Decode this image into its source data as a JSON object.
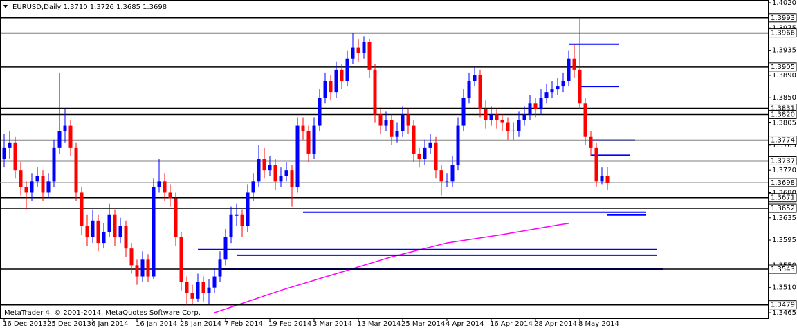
{
  "chart_data": {
    "type": "candlestick",
    "title": "EURUSD,Daily  1.3710 1.3726 1.3685 1.3698",
    "footer": "MetaTrader 4, © 2001-2014, MetaQuotes Software Corp.",
    "bull_color": "#0000ff",
    "bear_color": "#ff0000",
    "level_color": "#000000",
    "object_color": "#0000ff",
    "ma_color": "#ff00ff",
    "ylim": [
      1.3465,
      1.402
    ],
    "yticks": [
      {
        "value": 1.402,
        "label": "1.4020"
      },
      1.3975,
      1.3935,
      {
        "value": 1.389,
        "label": "1.3890"
      },
      {
        "value": 1.385,
        "label": "1.3850"
      },
      1.3805,
      1.3765,
      {
        "value": 1.372,
        "label": "1.3720"
      },
      {
        "value": 1.368,
        "label": "1.3680"
      },
      1.3635,
      1.3595,
      {
        "value": 1.355,
        "label": "1.3550"
      },
      {
        "value": 1.351,
        "label": "1.3510"
      },
      1.3465
    ],
    "xticks": [
      {
        "value": 0,
        "label": "16 Dec 2013"
      },
      {
        "value": 8,
        "label": "25 Dec 2013"
      },
      {
        "value": 16,
        "label": "6 Jan 2014"
      },
      {
        "value": 24,
        "label": "16 Jan 2014"
      },
      {
        "value": 32,
        "label": "28 Jan 2014"
      },
      {
        "value": 40,
        "label": "7 Feb 2014"
      },
      {
        "value": 48,
        "label": "19 Feb 2014"
      },
      {
        "value": 56,
        "label": "3 Mar 2014"
      },
      {
        "value": 64,
        "label": "13 Mar 2014"
      },
      {
        "value": 72,
        "label": "25 Mar 2014"
      },
      {
        "value": 80,
        "label": "4 Apr 2014"
      },
      {
        "value": 88,
        "label": "16 Apr 2014"
      },
      {
        "value": 96,
        "label": "28 Apr 2014"
      },
      {
        "value": 104,
        "label": "8 May 2014"
      }
    ],
    "levels": [
      1.3993,
      1.3966,
      1.3905,
      1.3831,
      {
        "value": 1.382,
        "label": "1.3820"
      },
      1.3774,
      1.3737,
      1.3671,
      1.3652,
      1.3543,
      1.3479
    ],
    "current_price": 1.3698,
    "objects": [
      {
        "price": 1.3946,
        "from": 102,
        "to": 111
      },
      {
        "price": 1.387,
        "from": 104,
        "to": 111
      },
      {
        "price": 1.3774,
        "from": 106,
        "to": 114
      },
      {
        "price": 1.3747,
        "from": 106,
        "to": 113
      },
      {
        "price": 1.3645,
        "from": 54,
        "to": 116
      },
      {
        "price": 1.364,
        "from": 109,
        "to": 116
      },
      {
        "price": 1.3578,
        "from": 35,
        "to": 118
      },
      {
        "price": 1.3568,
        "from": 42,
        "to": 118
      },
      {
        "price": 1.3543,
        "from": 39,
        "to": 119
      }
    ],
    "ma": {
      "x": [
        38,
        50,
        60,
        70,
        80,
        90,
        96,
        100,
        102
      ],
      "values": [
        1.3465,
        1.3505,
        1.3535,
        1.3565,
        1.359,
        1.3605,
        1.3615,
        1.3622,
        1.3625
      ]
    },
    "ohlc": [
      [
        1.374,
        1.3785,
        1.3725,
        1.376
      ],
      [
        1.376,
        1.379,
        1.374,
        1.377
      ],
      [
        1.377,
        1.378,
        1.3705,
        1.372
      ],
      [
        1.372,
        1.3735,
        1.3675,
        1.369
      ],
      [
        1.369,
        1.37,
        1.365,
        1.368
      ],
      [
        1.368,
        1.3715,
        1.3665,
        1.37
      ],
      [
        1.37,
        1.3725,
        1.369,
        1.371
      ],
      [
        1.371,
        1.372,
        1.3665,
        1.368
      ],
      [
        1.368,
        1.3715,
        1.367,
        1.37
      ],
      [
        1.37,
        1.3775,
        1.369,
        1.376
      ],
      [
        1.376,
        1.3895,
        1.375,
        1.379
      ],
      [
        1.379,
        1.383,
        1.377,
        1.38
      ],
      [
        1.38,
        1.381,
        1.3745,
        1.376
      ],
      [
        1.376,
        1.377,
        1.3665,
        1.368
      ],
      [
        1.368,
        1.369,
        1.3605,
        1.362
      ],
      [
        1.362,
        1.364,
        1.3585,
        1.36
      ],
      [
        1.36,
        1.365,
        1.359,
        1.363
      ],
      [
        1.363,
        1.364,
        1.3575,
        1.359
      ],
      [
        1.359,
        1.3625,
        1.358,
        1.361
      ],
      [
        1.361,
        1.366,
        1.36,
        1.364
      ],
      [
        1.364,
        1.365,
        1.3585,
        1.36
      ],
      [
        1.36,
        1.3635,
        1.359,
        1.362
      ],
      [
        1.362,
        1.363,
        1.3565,
        1.358
      ],
      [
        1.358,
        1.359,
        1.3535,
        1.355
      ],
      [
        1.355,
        1.356,
        1.3515,
        1.353
      ],
      [
        1.353,
        1.3575,
        1.352,
        1.356
      ],
      [
        1.356,
        1.357,
        1.352,
        1.353
      ],
      [
        1.353,
        1.3705,
        1.3525,
        1.369
      ],
      [
        1.369,
        1.374,
        1.368,
        1.37
      ],
      [
        1.37,
        1.3715,
        1.3665,
        1.368
      ],
      [
        1.368,
        1.3695,
        1.3655,
        1.367
      ],
      [
        1.367,
        1.368,
        1.3585,
        1.36
      ],
      [
        1.36,
        1.361,
        1.3505,
        1.352
      ],
      [
        1.352,
        1.353,
        1.3479,
        1.35
      ],
      [
        1.35,
        1.3515,
        1.348,
        1.349
      ],
      [
        1.349,
        1.3535,
        1.3485,
        1.352
      ],
      [
        1.352,
        1.353,
        1.3485,
        1.35
      ],
      [
        1.35,
        1.3525,
        1.348,
        1.351
      ],
      [
        1.351,
        1.3545,
        1.35,
        1.353
      ],
      [
        1.353,
        1.3575,
        1.352,
        1.356
      ],
      [
        1.356,
        1.3615,
        1.355,
        1.36
      ],
      [
        1.36,
        1.3655,
        1.359,
        1.364
      ],
      [
        1.364,
        1.366,
        1.362,
        1.364
      ],
      [
        1.364,
        1.365,
        1.36,
        1.362
      ],
      [
        1.362,
        1.3695,
        1.361,
        1.368
      ],
      [
        1.368,
        1.3715,
        1.3665,
        1.37
      ],
      [
        1.37,
        1.3765,
        1.369,
        1.374
      ],
      [
        1.374,
        1.376,
        1.3705,
        1.372
      ],
      [
        1.372,
        1.3745,
        1.371,
        1.373
      ],
      [
        1.373,
        1.374,
        1.3685,
        1.37
      ],
      [
        1.37,
        1.3725,
        1.369,
        1.371
      ],
      [
        1.371,
        1.3735,
        1.37,
        1.372
      ],
      [
        1.372,
        1.373,
        1.3655,
        1.369
      ],
      [
        1.369,
        1.3815,
        1.368,
        1.38
      ],
      [
        1.38,
        1.3815,
        1.3775,
        1.379
      ],
      [
        1.379,
        1.38,
        1.3735,
        1.375
      ],
      [
        1.375,
        1.3815,
        1.374,
        1.38
      ],
      [
        1.38,
        1.3865,
        1.379,
        1.385
      ],
      [
        1.385,
        1.3895,
        1.384,
        1.388
      ],
      [
        1.388,
        1.389,
        1.3845,
        1.386
      ],
      [
        1.386,
        1.3915,
        1.385,
        1.39
      ],
      [
        1.39,
        1.391,
        1.3865,
        1.388
      ],
      [
        1.388,
        1.3935,
        1.387,
        1.392
      ],
      [
        1.392,
        1.3966,
        1.391,
        1.394
      ],
      [
        1.394,
        1.3955,
        1.3915,
        1.393
      ],
      [
        1.393,
        1.396,
        1.392,
        1.395
      ],
      [
        1.395,
        1.3955,
        1.3885,
        1.39
      ],
      [
        1.39,
        1.391,
        1.3805,
        1.382
      ],
      [
        1.382,
        1.383,
        1.3785,
        1.38
      ],
      [
        1.38,
        1.3825,
        1.379,
        1.381
      ],
      [
        1.381,
        1.382,
        1.3765,
        1.378
      ],
      [
        1.378,
        1.3805,
        1.377,
        1.379
      ],
      [
        1.379,
        1.3835,
        1.378,
        1.382
      ],
      [
        1.382,
        1.383,
        1.3785,
        1.38
      ],
      [
        1.38,
        1.381,
        1.3735,
        1.375
      ],
      [
        1.375,
        1.376,
        1.3725,
        1.374
      ],
      [
        1.374,
        1.3775,
        1.373,
        1.376
      ],
      [
        1.376,
        1.3785,
        1.375,
        1.377
      ],
      [
        1.377,
        1.378,
        1.3705,
        1.372
      ],
      [
        1.372,
        1.373,
        1.3675,
        1.37
      ],
      [
        1.37,
        1.3715,
        1.369,
        1.3701
      ],
      [
        1.37,
        1.3745,
        1.369,
        1.373
      ],
      [
        1.373,
        1.3815,
        1.372,
        1.38
      ],
      [
        1.38,
        1.3865,
        1.379,
        1.385
      ],
      [
        1.385,
        1.3895,
        1.384,
        1.388
      ],
      [
        1.388,
        1.3905,
        1.387,
        1.389
      ],
      [
        1.389,
        1.39,
        1.3815,
        1.383
      ],
      [
        1.383,
        1.3845,
        1.3795,
        1.381
      ],
      [
        1.381,
        1.3835,
        1.38,
        1.382
      ],
      [
        1.382,
        1.383,
        1.3795,
        1.381
      ],
      [
        1.381,
        1.382,
        1.379,
        1.3805
      ],
      [
        1.3805,
        1.3815,
        1.3775,
        1.379
      ],
      [
        1.379,
        1.3805,
        1.3775,
        1.3791
      ],
      [
        1.379,
        1.3825,
        1.378,
        1.381
      ],
      [
        1.381,
        1.3835,
        1.38,
        1.382
      ],
      [
        1.382,
        1.3855,
        1.381,
        1.384
      ],
      [
        1.384,
        1.385,
        1.3815,
        1.383
      ],
      [
        1.383,
        1.3865,
        1.382,
        1.385
      ],
      [
        1.385,
        1.3875,
        1.384,
        1.386
      ],
      [
        1.386,
        1.388,
        1.385,
        1.3865
      ],
      [
        1.3865,
        1.3885,
        1.3855,
        1.387
      ],
      [
        1.387,
        1.3895,
        1.386,
        1.388
      ],
      [
        1.388,
        1.3935,
        1.387,
        1.392
      ],
      [
        1.392,
        1.3945,
        1.3885,
        1.39
      ],
      [
        1.39,
        1.3993,
        1.383,
        1.384
      ],
      [
        1.384,
        1.385,
        1.3765,
        1.378
      ],
      [
        1.378,
        1.379,
        1.3745,
        1.376
      ],
      [
        1.376,
        1.377,
        1.369,
        1.37
      ],
      [
        1.37,
        1.3725,
        1.3695,
        1.371
      ],
      [
        1.371,
        1.3726,
        1.3685,
        1.3698
      ]
    ]
  }
}
